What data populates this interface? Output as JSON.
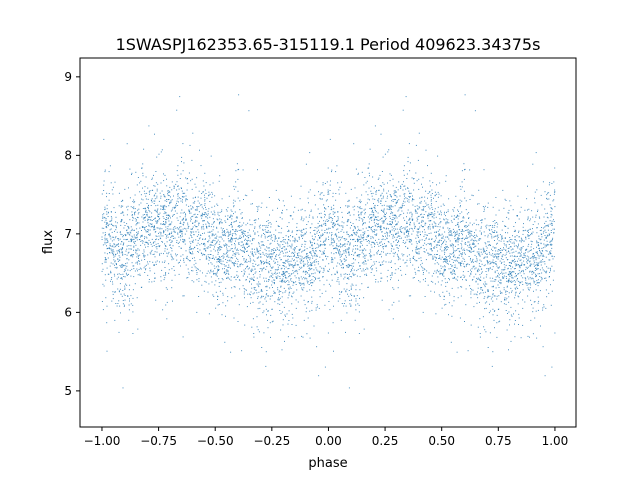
{
  "chart_data": {
    "type": "scatter",
    "title": "1SWASPJ162353.65-315119.1 Period 409623.34375s",
    "xlabel": "phase",
    "ylabel": "flux",
    "xlim": [
      -1.097,
      1.093
    ],
    "ylim": [
      4.54,
      9.24
    ],
    "xticks": [
      -1.0,
      -0.75,
      -0.5,
      -0.25,
      0.0,
      0.25,
      0.5,
      0.75,
      1.0
    ],
    "xtick_labels": [
      "−1.00",
      "−0.75",
      "−0.50",
      "−0.25",
      "0.00",
      "0.25",
      "0.50",
      "0.75",
      "1.00"
    ],
    "yticks": [
      5,
      6,
      7,
      8,
      9
    ],
    "ytick_labels": [
      "5",
      "6",
      "7",
      "8",
      "9"
    ],
    "grid": false,
    "legend": "none",
    "point_color": "#1f77b4",
    "phase_profile": {
      "phase": [
        0.0,
        0.05,
        0.1,
        0.15,
        0.2,
        0.25,
        0.3,
        0.35,
        0.4,
        0.45,
        0.5,
        0.55,
        0.6,
        0.65,
        0.7,
        0.75,
        0.8,
        0.85,
        0.9,
        0.95,
        1.0
      ],
      "median_flux": [
        7.0,
        6.9,
        6.75,
        6.9,
        7.1,
        7.15,
        7.0,
        7.2,
        7.0,
        7.1,
        6.8,
        6.8,
        6.9,
        6.6,
        6.65,
        6.6,
        6.6,
        6.7,
        6.65,
        6.8,
        7.0
      ],
      "flux_scatter_sd": 0.35,
      "flux_min": 4.75,
      "flux_max": 9.05
    }
  }
}
